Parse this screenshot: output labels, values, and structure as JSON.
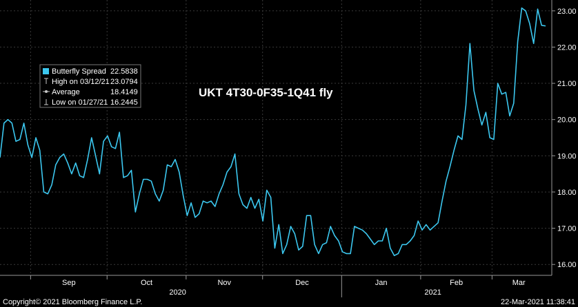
{
  "chart_data": {
    "type": "line",
    "title": "UKT 4T30-0F35-1Q41 fly",
    "ylim": [
      15.7,
      23.3
    ],
    "y_ticks": [
      "16.00",
      "17.00",
      "18.00",
      "19.00",
      "20.00",
      "21.00",
      "22.00",
      "23.00"
    ],
    "x_month_labels": [
      "Sep",
      "Oct",
      "Nov",
      "Dec",
      "Jan",
      "Feb",
      "Mar"
    ],
    "x_year_labels": [
      "2020",
      "2021"
    ],
    "grid": true,
    "legend_position": "top-left",
    "legend": [
      {
        "label": "Butterfly Spread",
        "value": "22.5838",
        "marker": "square"
      },
      {
        "label": "High on 03/12/21",
        "value": "23.0794",
        "marker": "high"
      },
      {
        "label": "Average",
        "value": "18.4149",
        "marker": "average"
      },
      {
        "label": "Low on 01/27/21",
        "value": "16.2445",
        "marker": "low"
      }
    ],
    "series": [
      {
        "name": "Butterfly Spread",
        "color": "#3cc8f0",
        "x_start": "2020-08-20",
        "x_end": "2021-03-22",
        "values": [
          18.95,
          19.9,
          20.0,
          19.9,
          19.4,
          19.45,
          19.9,
          19.3,
          18.95,
          19.5,
          19.15,
          18.0,
          17.95,
          18.2,
          18.75,
          18.95,
          19.05,
          18.8,
          18.5,
          18.8,
          18.45,
          18.4,
          18.9,
          19.5,
          19.0,
          18.5,
          19.4,
          19.55,
          19.25,
          19.2,
          19.65,
          18.4,
          18.45,
          18.6,
          17.45,
          17.95,
          18.35,
          18.35,
          18.3,
          17.95,
          17.75,
          18.05,
          18.75,
          18.7,
          18.9,
          18.55,
          17.9,
          17.35,
          17.7,
          17.3,
          17.4,
          17.75,
          17.7,
          17.75,
          17.6,
          17.95,
          18.2,
          18.55,
          18.7,
          19.05,
          17.95,
          17.65,
          17.55,
          17.85,
          17.55,
          17.8,
          17.2,
          18.05,
          17.85,
          16.45,
          17.1,
          16.3,
          16.55,
          17.05,
          16.85,
          16.4,
          16.5,
          17.35,
          17.35,
          16.55,
          16.3,
          16.55,
          16.6,
          17.05,
          16.8,
          16.65,
          16.35,
          16.3,
          16.3,
          17.05,
          17.0,
          16.95,
          16.85,
          16.7,
          16.55,
          16.65,
          16.65,
          17.0,
          16.45,
          16.2445,
          16.3,
          16.55,
          16.55,
          16.65,
          16.8,
          17.2,
          16.95,
          17.1,
          16.95,
          17.05,
          17.15,
          17.75,
          18.3,
          18.7,
          19.15,
          19.55,
          19.45,
          20.4,
          22.1,
          20.8,
          20.3,
          19.85,
          20.2,
          19.5,
          19.45,
          21.0,
          20.7,
          20.75,
          20.1,
          20.45,
          22.15,
          23.0794,
          23.0,
          22.65,
          22.1,
          23.05,
          22.6,
          22.5838
        ]
      }
    ]
  },
  "footer": {
    "copyright": "Copyright© 2021 Bloomberg Finance L.P.",
    "timestamp": "22-Mar-2021 11:38:41"
  }
}
